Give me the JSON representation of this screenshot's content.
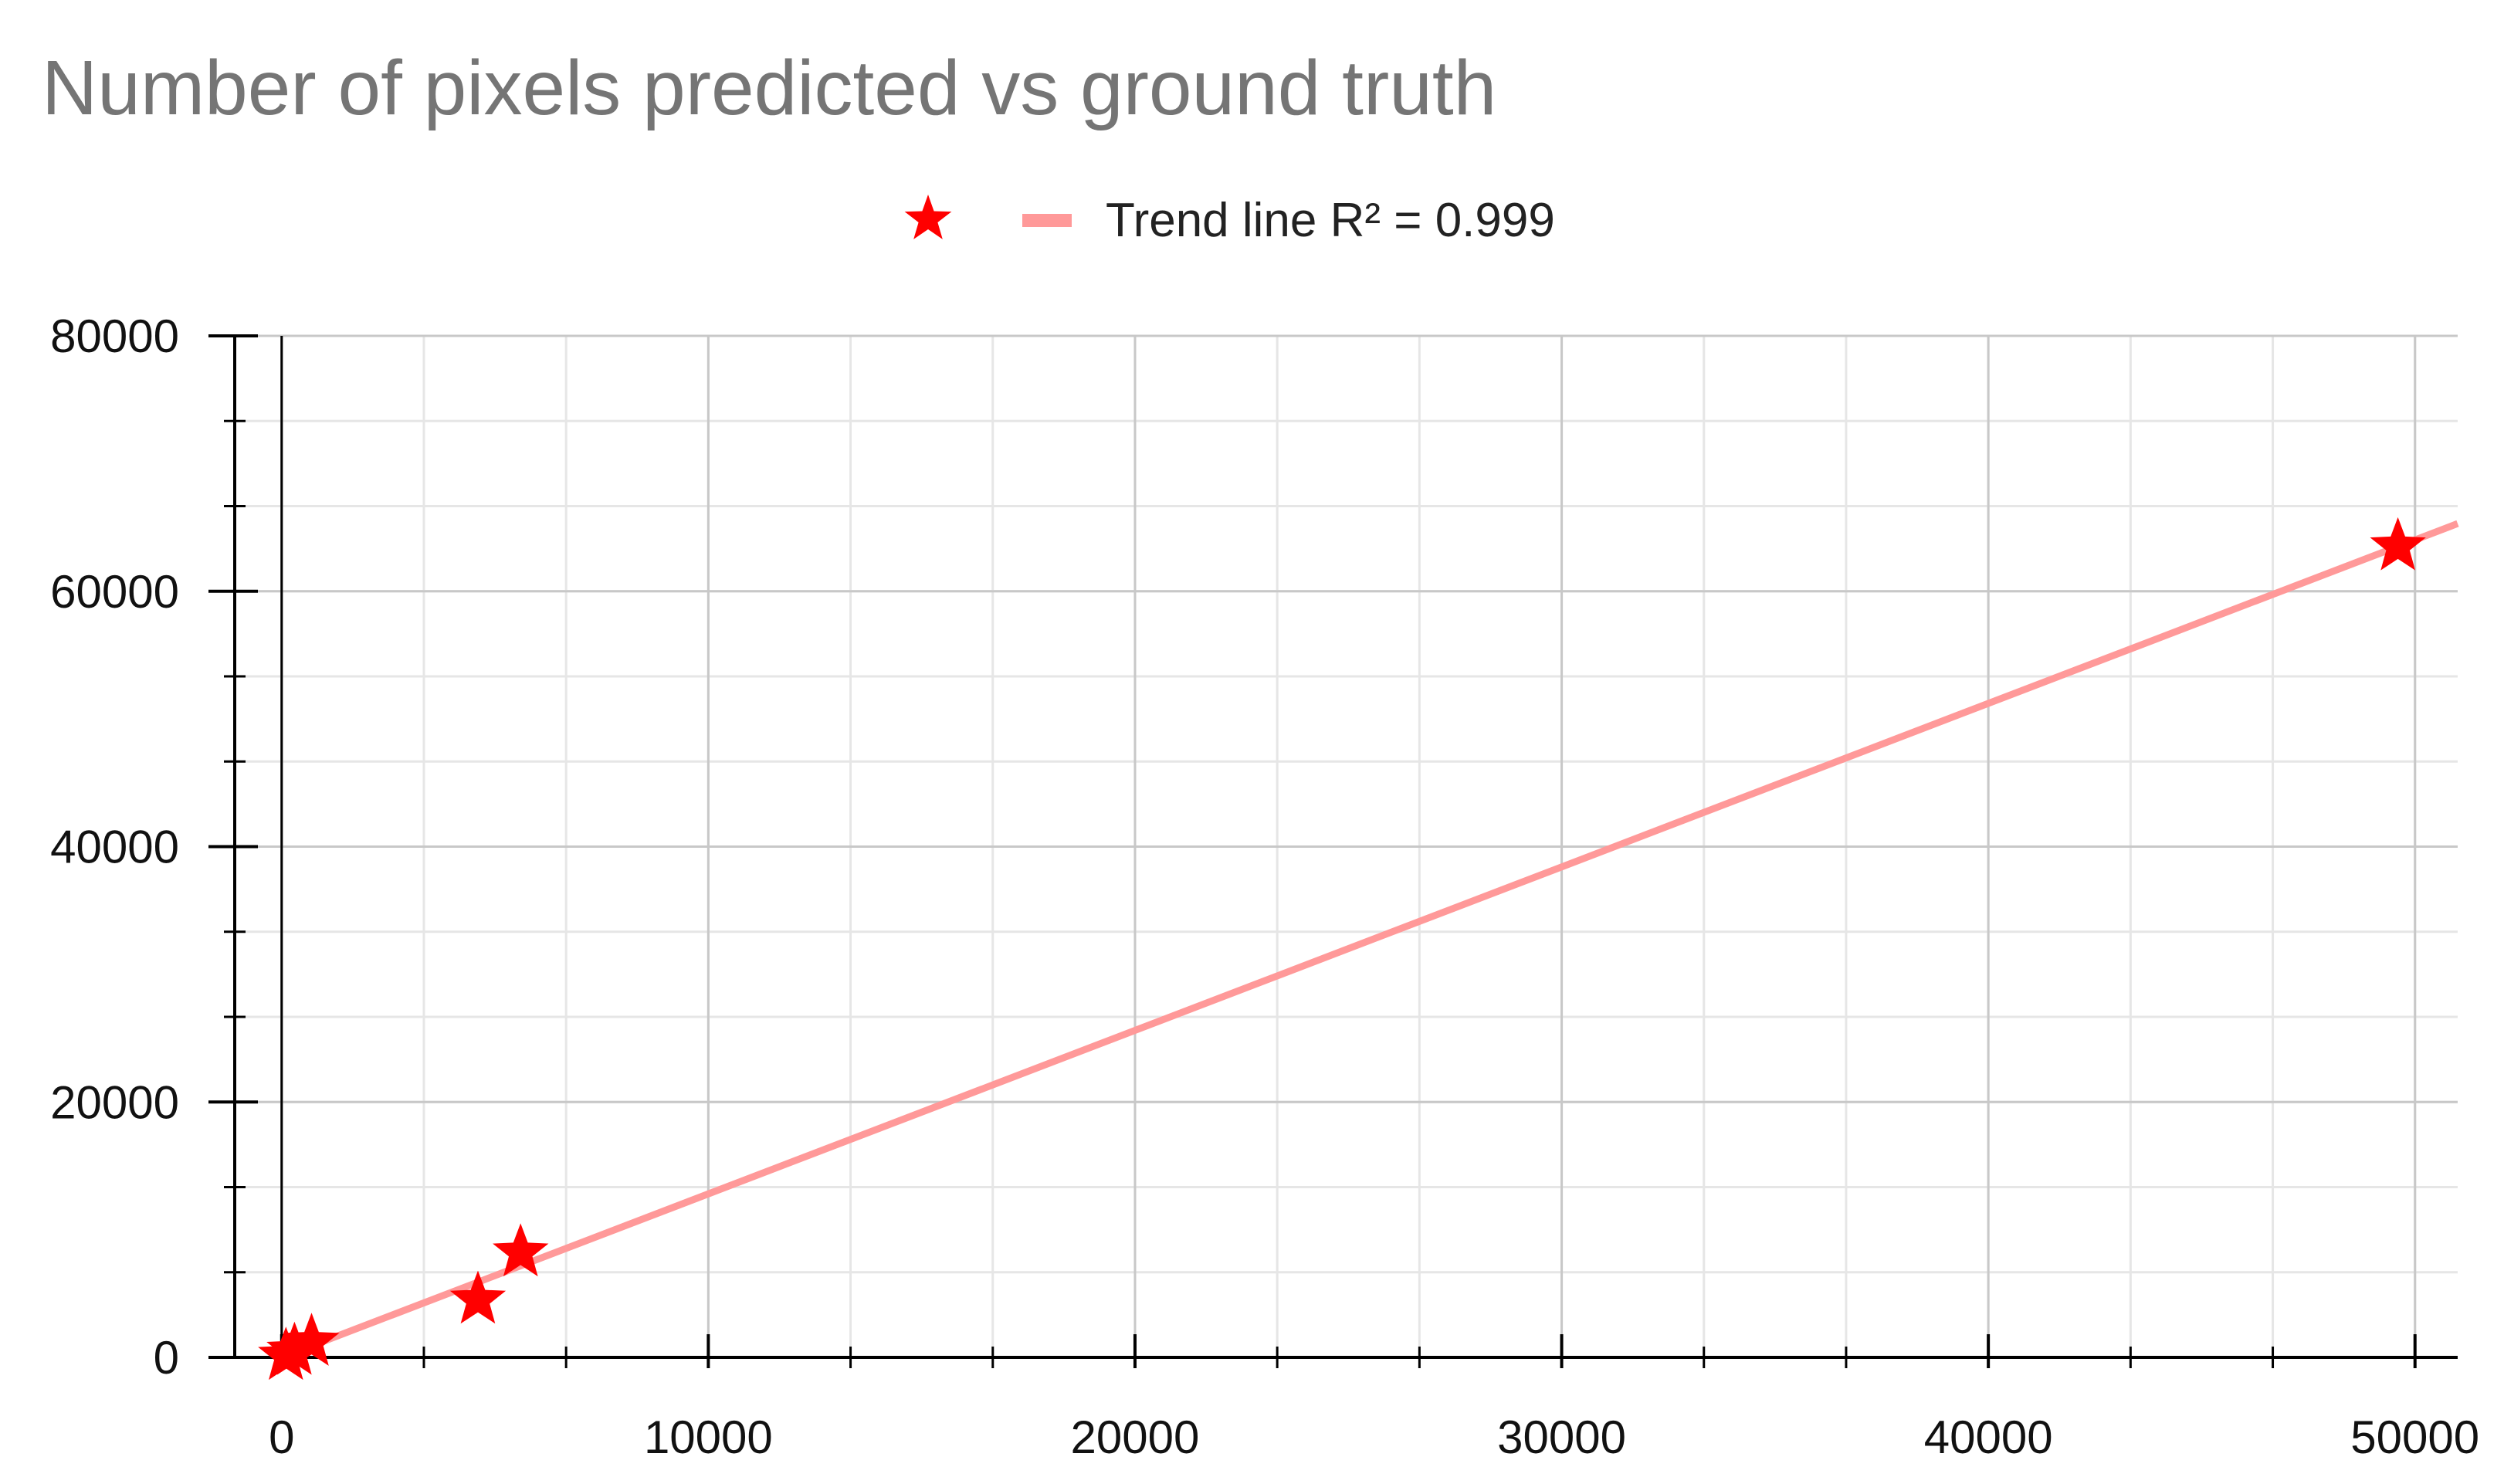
{
  "chart_data": {
    "type": "scatter",
    "title": "Number of pixels predicted vs ground truth",
    "xlabel": "",
    "ylabel": "",
    "xlim": [
      -1100,
      51000
    ],
    "ylim": [
      0,
      80000
    ],
    "x_ticks": [
      0,
      10000,
      20000,
      30000,
      40000,
      50000
    ],
    "y_ticks": [
      0,
      20000,
      40000,
      60000,
      80000
    ],
    "x_tick_labels": [
      "0",
      "10000",
      "20000",
      "30000",
      "40000",
      "50000"
    ],
    "y_tick_labels": [
      "0",
      "20000",
      "40000",
      "60000",
      "80000"
    ],
    "grid": true,
    "legend_position": "top-center",
    "series": [
      {
        "name": "",
        "marker": "star",
        "color": "#ff0000",
        "x": [
          100,
          300,
          700,
          4600,
          5600,
          49600
        ],
        "y": [
          100,
          500,
          1200,
          4500,
          8200,
          63500
        ]
      }
    ],
    "trend_line": {
      "label": "Trend line R² = 0.999",
      "color": "#ff9999",
      "x": [
        0,
        51000
      ],
      "y": [
        0,
        65300
      ]
    }
  }
}
